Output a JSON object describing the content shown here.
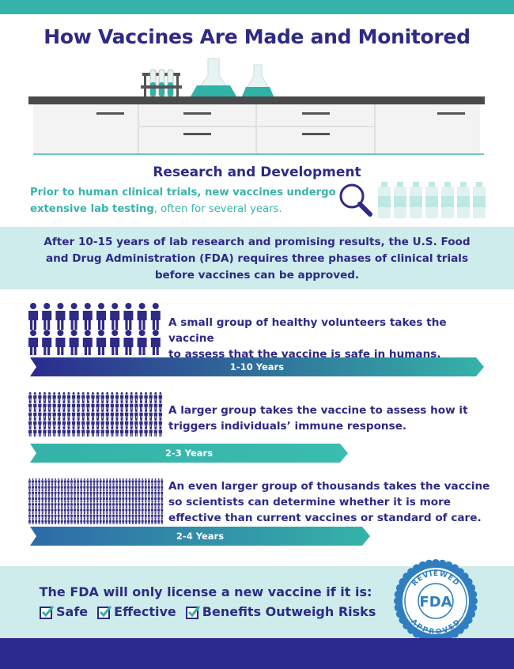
{
  "title": "How Vaccines Are Made and Monitored",
  "research": {
    "heading": "Research and Development",
    "line1": "Prior to human clinical trials, new vaccines undergo",
    "line2_bold": "extensive lab testing",
    "line2_rest": ", often for several years."
  },
  "fda_requirement": {
    "line1": "After 10-15 years of lab research and promising results, the U.S. Food",
    "line2": "and Drug Administration (FDA) requires three phases of clinical trials",
    "line3": "before vaccines can be approved."
  },
  "phases": [
    {
      "line1": "A small group of healthy volunteers takes the vaccine",
      "line2": "to assess that the vaccine is safe in humans.",
      "duration": "1-10 Years"
    },
    {
      "line1": "A larger group takes the vaccine to assess how it",
      "line2": "triggers individuals’ immune response.",
      "duration": "2-3 Years"
    },
    {
      "line1": "An even larger group of thousands takes the vaccine",
      "line2": "so scientists can determine whether it is more",
      "line3": "effective than current vaccines or standard of care.",
      "duration": "2-4 Years"
    }
  ],
  "license": {
    "statement": "The FDA will only license a new vaccine if it is:",
    "criteria": [
      "Safe",
      "Effective",
      "Benefits Outweigh Risks"
    ]
  },
  "seal": {
    "top_text": "REVIEWED",
    "center_text": "FDA",
    "bottom_text": "APPROVED"
  },
  "colors": {
    "navy": "#2e2a85",
    "teal": "#35b3a8",
    "light_teal": "#cdeceb"
  }
}
